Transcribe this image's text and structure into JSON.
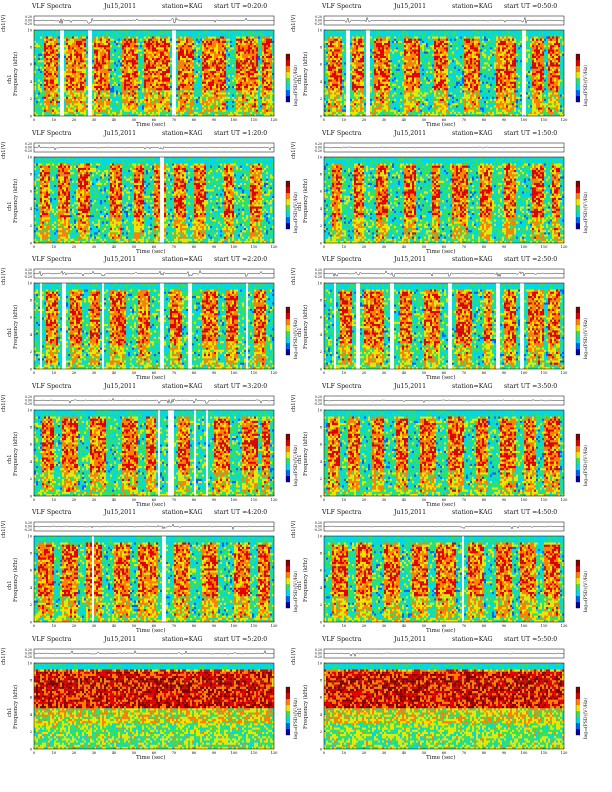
{
  "page": {
    "background": "#ffffff"
  },
  "common": {
    "title": "VLF Spectra",
    "date": "Ju15,2011",
    "station": "station=KAG",
    "start_prefix": "start UT =",
    "waveform_ylabel": "ch1(V)",
    "spectrogram_ylabel": "Frequency (kHz)",
    "channel_label": "ch1",
    "xlabel": "Time (sec)",
    "colorbar_label": "log₁₀(PSD)(V²/Hz)"
  },
  "chart_data": [
    {
      "type": "heatmap",
      "start_ut": "0:20:0",
      "title": "VLF Spectra   Ju15,2011   station=KAG   start UT =0:20:0",
      "xlabel": "Time (sec)",
      "ylabel": "Frequency (kHz)",
      "x_ticks": [
        0,
        10,
        20,
        30,
        40,
        50,
        60,
        70,
        80,
        90,
        100,
        110,
        120
      ],
      "y_ticks": [
        0,
        2,
        4,
        6,
        8,
        10
      ],
      "waveform_ticks": [
        "0.20",
        "0.00",
        "-0.20"
      ],
      "colorbar_ticks": [
        "-2",
        "-4",
        "-6"
      ],
      "xlim": [
        0,
        120
      ],
      "ylim": [
        0,
        10
      ],
      "grid": false,
      "colorscale": [
        "#0000a0",
        "#0060ff",
        "#00d8e8",
        "#34e060",
        "#e8e800",
        "#ff8000",
        "#e00000",
        "#800000"
      ],
      "gaps_sec": [
        [
          13,
          15
        ],
        [
          27,
          29
        ],
        [
          69,
          71
        ]
      ],
      "intense_bands_sec": [
        [
          5,
          12
        ],
        [
          16,
          26
        ],
        [
          30,
          38
        ],
        [
          44,
          52
        ],
        [
          55,
          68
        ],
        [
          72,
          80
        ],
        [
          84,
          96
        ],
        [
          101,
          112
        ],
        [
          114,
          119
        ]
      ]
    },
    {
      "type": "heatmap",
      "start_ut": "0:50:0",
      "title": "VLF Spectra   Ju15,2011   station=KAG   start UT =0:50:0",
      "xlabel": "Time (sec)",
      "ylabel": "Frequency (kHz)",
      "x_ticks": [
        0,
        10,
        20,
        30,
        40,
        50,
        60,
        70,
        80,
        90,
        100,
        110,
        120
      ],
      "y_ticks": [
        0,
        2,
        4,
        6,
        8,
        10
      ],
      "waveform_ticks": [
        "0.20",
        "0.00",
        "-0.20"
      ],
      "colorbar_ticks": [
        "-2",
        "-4",
        "-6"
      ],
      "xlim": [
        0,
        120
      ],
      "ylim": [
        0,
        10
      ],
      "grid": false,
      "colorscale": [
        "#0000a0",
        "#0060ff",
        "#00d8e8",
        "#34e060",
        "#e8e800",
        "#ff8000",
        "#e00000",
        "#800000"
      ],
      "gaps_sec": [
        [
          11,
          13
        ],
        [
          21,
          23
        ],
        [
          99,
          101
        ]
      ],
      "intense_bands_sec": [
        [
          2,
          9
        ],
        [
          14,
          20
        ],
        [
          25,
          33
        ],
        [
          40,
          48
        ],
        [
          55,
          62
        ],
        [
          70,
          78
        ],
        [
          86,
          96
        ],
        [
          104,
          110
        ],
        [
          112,
          118
        ]
      ]
    },
    {
      "type": "heatmap",
      "start_ut": "1:20:0",
      "title": "VLF Spectra   Ju15,2011   station=KAG   start UT =1:20:0",
      "xlabel": "Time (sec)",
      "ylabel": "Frequency (kHz)",
      "x_ticks": [
        0,
        10,
        20,
        30,
        40,
        50,
        60,
        70,
        80,
        90,
        100,
        110,
        120
      ],
      "y_ticks": [
        0,
        2,
        4,
        6,
        8,
        10
      ],
      "waveform_ticks": [
        "0.20",
        "0.00",
        "-0.20"
      ],
      "colorbar_ticks": [
        "-2",
        "-4",
        "-6"
      ],
      "xlim": [
        0,
        120
      ],
      "ylim": [
        0,
        10
      ],
      "grid": false,
      "colorscale": [
        "#0000a0",
        "#0060ff",
        "#00d8e8",
        "#34e060",
        "#e8e800",
        "#ff8000",
        "#e00000",
        "#800000"
      ],
      "gaps_sec": [
        [
          63,
          65
        ]
      ],
      "intense_bands_sec": [
        [
          3,
          8
        ],
        [
          12,
          18
        ],
        [
          22,
          28
        ],
        [
          38,
          44
        ],
        [
          50,
          55
        ],
        [
          60,
          66
        ],
        [
          70,
          76
        ],
        [
          80,
          86
        ],
        [
          95,
          100
        ],
        [
          108,
          114
        ]
      ]
    },
    {
      "type": "heatmap",
      "start_ut": "1:50:0",
      "title": "VLF Spectra   Ju15,2011   station=KAG   start UT =1:50:0",
      "xlabel": "Time (sec)",
      "ylabel": "Frequency (kHz)",
      "x_ticks": [
        0,
        10,
        20,
        30,
        40,
        50,
        60,
        70,
        80,
        90,
        100,
        110,
        120
      ],
      "y_ticks": [
        0,
        2,
        4,
        6,
        8,
        10
      ],
      "waveform_ticks": [
        "0.20",
        "0.00",
        "-0.20"
      ],
      "colorbar_ticks": [
        "-2",
        "-4",
        "-6"
      ],
      "xlim": [
        0,
        120
      ],
      "ylim": [
        0,
        10
      ],
      "grid": false,
      "colorscale": [
        "#0000a0",
        "#0060ff",
        "#00d8e8",
        "#34e060",
        "#e8e800",
        "#ff8000",
        "#e00000",
        "#800000"
      ],
      "gaps_sec": [],
      "intense_bands_sec": [
        [
          4,
          9
        ],
        [
          15,
          20
        ],
        [
          26,
          32
        ],
        [
          40,
          46
        ],
        [
          54,
          58
        ],
        [
          64,
          72
        ],
        [
          78,
          84
        ],
        [
          90,
          96
        ],
        [
          104,
          110
        ],
        [
          114,
          118
        ]
      ]
    },
    {
      "type": "heatmap",
      "start_ut": "2:20:0",
      "title": "VLF Spectra   Ju15,2011   station=KAG   start UT =2:20:0",
      "xlabel": "Time (sec)",
      "ylabel": "Frequency (kHz)",
      "x_ticks": [
        0,
        10,
        20,
        30,
        40,
        50,
        60,
        70,
        80,
        90,
        100,
        110,
        120
      ],
      "y_ticks": [
        0,
        2,
        4,
        6,
        8,
        10
      ],
      "waveform_ticks": [
        "0.20",
        "0.00",
        "-0.20"
      ],
      "colorbar_ticks": [
        "-2",
        "-4",
        "-6"
      ],
      "xlim": [
        0,
        120
      ],
      "ylim": [
        0,
        10
      ],
      "grid": false,
      "colorscale": [
        "#0000a0",
        "#0060ff",
        "#00d8e8",
        "#34e060",
        "#e8e800",
        "#ff8000",
        "#e00000",
        "#800000"
      ],
      "gaps_sec": [
        [
          3,
          4
        ],
        [
          14,
          16
        ],
        [
          34,
          35
        ],
        [
          63,
          65
        ],
        [
          77,
          79
        ],
        [
          106,
          107
        ]
      ],
      "intense_bands_sec": [
        [
          6,
          12
        ],
        [
          18,
          24
        ],
        [
          28,
          33
        ],
        [
          38,
          46
        ],
        [
          52,
          58
        ],
        [
          68,
          74
        ],
        [
          84,
          92
        ],
        [
          96,
          102
        ],
        [
          110,
          116
        ]
      ]
    },
    {
      "type": "heatmap",
      "start_ut": "2:50:0",
      "title": "VLF Spectra   Ju15,2011   station=KAG   start UT =2:50:0",
      "xlabel": "Time (sec)",
      "ylabel": "Frequency (kHz)",
      "x_ticks": [
        0,
        10,
        20,
        30,
        40,
        50,
        60,
        70,
        80,
        90,
        100,
        110,
        120
      ],
      "y_ticks": [
        0,
        2,
        4,
        6,
        8,
        10
      ],
      "waveform_ticks": [
        "0.20",
        "0.00",
        "-0.20"
      ],
      "colorbar_ticks": [
        "-2",
        "-4",
        "-6"
      ],
      "xlim": [
        0,
        120
      ],
      "ylim": [
        0,
        10
      ],
      "grid": false,
      "colorscale": [
        "#0000a0",
        "#0060ff",
        "#00d8e8",
        "#34e060",
        "#e8e800",
        "#ff8000",
        "#e00000",
        "#800000"
      ],
      "gaps_sec": [
        [
          5,
          6
        ],
        [
          16,
          18
        ],
        [
          33,
          35
        ],
        [
          62,
          64
        ],
        [
          86,
          88
        ],
        [
          98,
          100
        ]
      ],
      "intense_bands_sec": [
        [
          8,
          14
        ],
        [
          20,
          30
        ],
        [
          38,
          44
        ],
        [
          50,
          58
        ],
        [
          66,
          74
        ],
        [
          80,
          84
        ],
        [
          90,
          96
        ],
        [
          102,
          110
        ],
        [
          112,
          118
        ]
      ]
    },
    {
      "type": "heatmap",
      "start_ut": "3:20:0",
      "title": "VLF Spectra   Ju15,2011   station=KAG   start UT =3:20:0",
      "xlabel": "Time (sec)",
      "ylabel": "Frequency (kHz)",
      "x_ticks": [
        0,
        10,
        20,
        30,
        40,
        50,
        60,
        70,
        80,
        90,
        100,
        110,
        120
      ],
      "y_ticks": [
        0,
        2,
        4,
        6,
        8,
        10
      ],
      "waveform_ticks": [
        "0.20",
        "0.00",
        "-0.20"
      ],
      "colorbar_ticks": [
        "-2",
        "-4",
        "-6"
      ],
      "xlim": [
        0,
        120
      ],
      "ylim": [
        0,
        10
      ],
      "grid": false,
      "colorscale": [
        "#0000a0",
        "#0060ff",
        "#00d8e8",
        "#34e060",
        "#e8e800",
        "#ff8000",
        "#e00000",
        "#800000"
      ],
      "gaps_sec": [
        [
          62,
          63
        ],
        [
          67,
          70
        ],
        [
          80,
          81
        ],
        [
          86,
          87
        ]
      ],
      "intense_bands_sec": [
        [
          4,
          10
        ],
        [
          14,
          22
        ],
        [
          28,
          36
        ],
        [
          44,
          52
        ],
        [
          56,
          61
        ],
        [
          72,
          78
        ],
        [
          90,
          98
        ],
        [
          104,
          112
        ],
        [
          114,
          118
        ]
      ]
    },
    {
      "type": "heatmap",
      "start_ut": "3:50:0",
      "title": "VLF Spectra   Ju15,2011   station=KAG   start UT =3:50:0",
      "xlabel": "Time (sec)",
      "ylabel": "Frequency (kHz)",
      "x_ticks": [
        0,
        10,
        20,
        30,
        40,
        50,
        60,
        70,
        80,
        90,
        100,
        110,
        120
      ],
      "y_ticks": [
        0,
        2,
        4,
        6,
        8,
        10
      ],
      "waveform_ticks": [
        "0.20",
        "0.00",
        "-0.20"
      ],
      "colorbar_ticks": [
        "-2",
        "-4",
        "-6"
      ],
      "xlim": [
        0,
        120
      ],
      "ylim": [
        0,
        10
      ],
      "grid": false,
      "colorscale": [
        "#0000a0",
        "#0060ff",
        "#00d8e8",
        "#34e060",
        "#e8e800",
        "#ff8000",
        "#e00000",
        "#800000"
      ],
      "gaps_sec": [],
      "intense_bands_sec": [
        [
          2,
          8
        ],
        [
          12,
          18
        ],
        [
          24,
          30
        ],
        [
          36,
          42
        ],
        [
          48,
          56
        ],
        [
          62,
          70
        ],
        [
          76,
          82
        ],
        [
          88,
          96
        ],
        [
          100,
          106
        ],
        [
          110,
          118
        ]
      ]
    },
    {
      "type": "heatmap",
      "start_ut": "4:20:0",
      "title": "VLF Spectra   Ju15,2011   station=KAG   start UT =4:20:0",
      "xlabel": "Time (sec)",
      "ylabel": "Frequency (kHz)",
      "x_ticks": [
        0,
        10,
        20,
        30,
        40,
        50,
        60,
        70,
        80,
        90,
        100,
        110,
        120
      ],
      "y_ticks": [
        0,
        2,
        4,
        6,
        8,
        10
      ],
      "waveform_ticks": [
        "0.20",
        "0.00",
        "-0.20"
      ],
      "colorbar_ticks": [
        "-2",
        "-4",
        "-6"
      ],
      "xlim": [
        0,
        120
      ],
      "ylim": [
        0,
        10
      ],
      "grid": false,
      "colorscale": [
        "#0000a0",
        "#0060ff",
        "#00d8e8",
        "#34e060",
        "#e8e800",
        "#ff8000",
        "#e00000",
        "#800000"
      ],
      "gaps_sec": [
        [
          29,
          30
        ],
        [
          64,
          66
        ]
      ],
      "intense_bands_sec": [
        [
          2,
          10
        ],
        [
          14,
          22
        ],
        [
          26,
          34
        ],
        [
          40,
          48
        ],
        [
          52,
          62
        ],
        [
          70,
          78
        ],
        [
          84,
          92
        ],
        [
          100,
          108
        ],
        [
          112,
          118
        ]
      ]
    },
    {
      "type": "heatmap",
      "start_ut": "4:50:0",
      "title": "VLF Spectra   Ju15,2011   station=KAG   start UT =4:50:0",
      "xlabel": "Time (sec)",
      "ylabel": "Frequency (kHz)",
      "x_ticks": [
        0,
        10,
        20,
        30,
        40,
        50,
        60,
        70,
        80,
        90,
        100,
        110,
        120
      ],
      "y_ticks": [
        0,
        2,
        4,
        6,
        8,
        10
      ],
      "waveform_ticks": [
        "0.20",
        "0.00",
        "-0.20"
      ],
      "colorbar_ticks": [
        "-2",
        "-4",
        "-6"
      ],
      "xlim": [
        0,
        120
      ],
      "ylim": [
        0,
        10
      ],
      "grid": false,
      "colorscale": [
        "#0000a0",
        "#0060ff",
        "#00d8e8",
        "#34e060",
        "#e8e800",
        "#ff8000",
        "#e00000",
        "#800000"
      ],
      "gaps_sec": [
        [
          69,
          70
        ]
      ],
      "intense_bands_sec": [
        [
          4,
          12
        ],
        [
          16,
          24
        ],
        [
          30,
          38
        ],
        [
          44,
          52
        ],
        [
          56,
          66
        ],
        [
          72,
          80
        ],
        [
          86,
          94
        ],
        [
          98,
          106
        ],
        [
          110,
          118
        ]
      ]
    },
    {
      "type": "heatmap",
      "start_ut": "5:20:0",
      "title": "VLF Spectra   Ju15,2011   station=KAG   start UT =5:20:0",
      "xlabel": "Time (sec)",
      "ylabel": "Frequency (kHz)",
      "x_ticks": [
        0,
        10,
        20,
        30,
        40,
        50,
        60,
        70,
        80,
        90,
        100,
        110,
        120
      ],
      "y_ticks": [
        0,
        2,
        4,
        6,
        8,
        10
      ],
      "waveform_ticks": [
        "0.20",
        "0.00",
        "-0.20"
      ],
      "colorbar_ticks": [
        "-2",
        "-4",
        "-6"
      ],
      "xlim": [
        0,
        120
      ],
      "ylim": [
        0,
        10
      ],
      "grid": false,
      "colorscale": [
        "#0000a0",
        "#0060ff",
        "#00d8e8",
        "#34e060",
        "#e8e800",
        "#ff8000",
        "#e00000",
        "#800000"
      ],
      "gaps_sec": [],
      "intense_bands_sec": [
        [
          1,
          119
        ]
      ]
    },
    {
      "type": "heatmap",
      "start_ut": "5:50:0",
      "title": "VLF Spectra   Ju15,2011   station=KAG   start UT =5:50:0",
      "xlabel": "Time (sec)",
      "ylabel": "Frequency (kHz)",
      "x_ticks": [
        0,
        10,
        20,
        30,
        40,
        50,
        60,
        70,
        80,
        90,
        100,
        110,
        120
      ],
      "y_ticks": [
        0,
        2,
        4,
        6,
        8,
        10
      ],
      "waveform_ticks": [
        "0.20",
        "0.00",
        "-0.20"
      ],
      "colorbar_ticks": [
        "-2",
        "-4",
        "-6"
      ],
      "xlim": [
        0,
        120
      ],
      "ylim": [
        0,
        10
      ],
      "grid": false,
      "colorscale": [
        "#0000a0",
        "#0060ff",
        "#00d8e8",
        "#34e060",
        "#e8e800",
        "#ff8000",
        "#e00000",
        "#800000"
      ],
      "gaps_sec": [],
      "intense_bands_sec": [
        [
          1,
          119
        ]
      ]
    }
  ]
}
